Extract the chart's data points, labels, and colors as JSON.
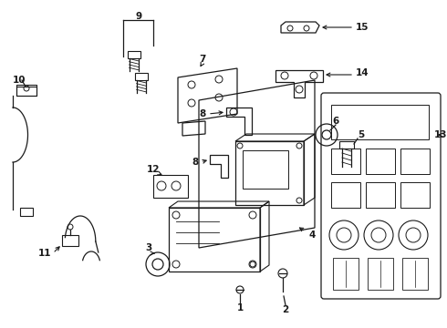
{
  "background_color": "#ffffff",
  "line_color": "#1a1a1a",
  "fig_w": 4.9,
  "fig_h": 3.6,
  "dpi": 100
}
